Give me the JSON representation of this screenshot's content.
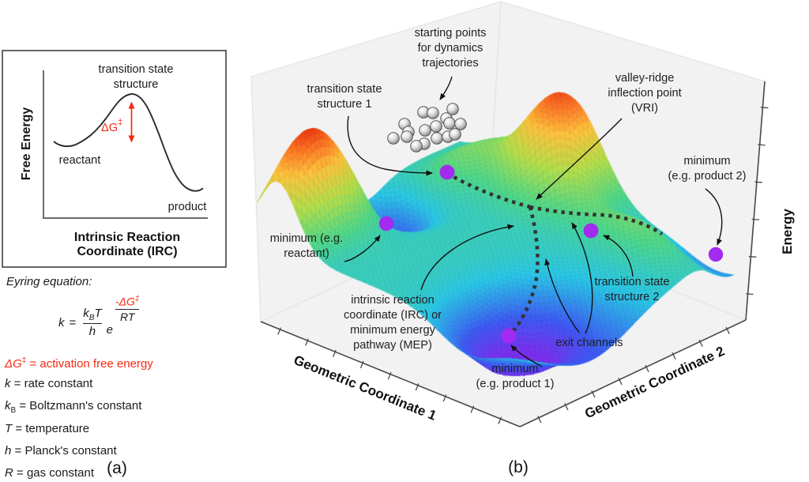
{
  "figure": {
    "panel_a": {
      "caption": "(a)",
      "plot": {
        "y_axis": "Free Energy",
        "x_axis_line1": "Intrinsic Reaction",
        "x_axis_line2": "Coordinate (IRC)",
        "peak_label_line1": "transition state",
        "peak_label_line2": "structure",
        "reactant": "reactant",
        "product": "product",
        "dg_label": "ΔG",
        "dg_dagger": "‡"
      },
      "eyring": {
        "heading": "Eyring equation:",
        "k": "k",
        "equals": "=",
        "kB_main": "k",
        "kB_sub": "B",
        "T": "T",
        "den_h": "h",
        "e": "e",
        "exp_num": "-ΔG",
        "exp_dagger": "‡",
        "exp_den": "RT"
      },
      "definitions": [
        {
          "variable": "ΔG",
          "sup": "‡",
          "sub": "",
          "text": " = activation free energy"
        },
        {
          "variable": "k",
          "sup": "",
          "sub": "",
          "text": " = rate constant"
        },
        {
          "variable": "k",
          "sup": "",
          "sub": "B",
          "text": " = Boltzmann's constant"
        },
        {
          "variable": "T",
          "sup": "",
          "sub": "",
          "text": " = temperature"
        },
        {
          "variable": "h",
          "sup": "",
          "sub": "",
          "text": " = Planck's constant"
        },
        {
          "variable": "R",
          "sup": "",
          "sub": "",
          "text": " = gas constant"
        }
      ],
      "accent_red": "#f42a12"
    },
    "panel_b": {
      "caption": "(b)",
      "axis_labels": {
        "coord1": "Geometric Coordinate 1",
        "coord2": "Geometric Coordinate 2",
        "energy": "Energy"
      },
      "annotations": {
        "starting_points": [
          "starting points",
          "for dynamics",
          "trajectories"
        ],
        "ts1": [
          "transition state",
          "structure 1"
        ],
        "vri": [
          "valley-ridge",
          "inflection point",
          "(VRI)"
        ],
        "min_product2": [
          "minimum",
          "(e.g. product 2)"
        ],
        "min_reactant": [
          "minimum (e.g.",
          "reactant)"
        ],
        "irc_mep": [
          "intrinsic reaction",
          "coordinate (IRC) or",
          "minimum energy",
          "pathway (MEP)"
        ],
        "min_product1": [
          "minimum",
          "(e.g. product 1)"
        ],
        "exit_channels": [
          "exit channels"
        ],
        "ts2": [
          "transition state",
          "structure 2"
        ]
      },
      "marker_color": "#a32af0",
      "stationary_point_markers": 5,
      "trajectory_spheres": 17,
      "surface_palette": [
        "#7a2ff0",
        "#3d5af5",
        "#29c8e8",
        "#4fd98a",
        "#b4e04b",
        "#ffc43d",
        "#ff7826",
        "#e62309"
      ],
      "wall_color": "#f2f2f3",
      "path_color": "#333333"
    }
  }
}
